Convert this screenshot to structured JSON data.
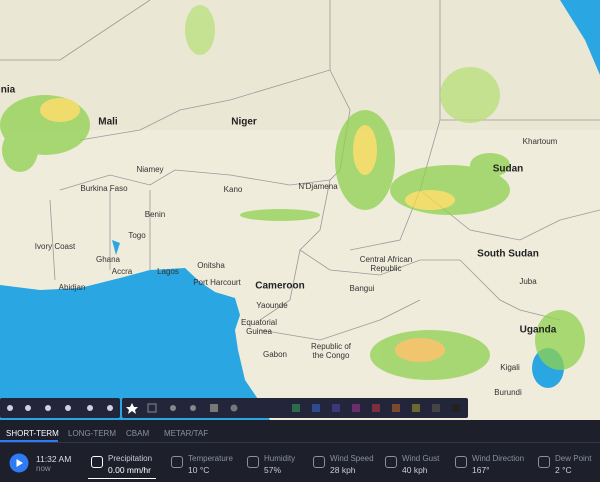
{
  "map": {
    "labels": [
      "nia",
      "Mali",
      "Niger",
      "Niamey",
      "Burkina Faso",
      "Kano",
      "N'Djamena",
      "Khartoum",
      "Sudan",
      "Benin",
      "Togo",
      "Ivory Coast",
      "Ghana",
      "Accra",
      "Lagos",
      "Abidjan",
      "Onitsha",
      "Port Harcourt",
      "Cameroon",
      "Yaounde",
      "Equatorial",
      "Guinea",
      "Central African",
      "Republic",
      "Bangui",
      "South Sudan",
      "Juba",
      "Gabon",
      "Republic of",
      "the Congo",
      "Uganda",
      "Kigali",
      "Burundi"
    ]
  },
  "tabs": [
    "SHORT-TERM",
    "LONG-TERM",
    "CBAM",
    "METAR/TAF"
  ],
  "time": {
    "clock": "11:32 AM",
    "sub": "now"
  },
  "metrics": [
    {
      "label": "Precipitation",
      "value": "0.00 mm/hr"
    },
    {
      "label": "Temperature",
      "value": "10 °C"
    },
    {
      "label": "Humidity",
      "value": "57%"
    },
    {
      "label": "Wind Speed",
      "value": "28 kph"
    },
    {
      "label": "Wind Gust",
      "value": "40 kph"
    },
    {
      "label": "Wind Direction",
      "value": "167°"
    },
    {
      "label": "Dew Point",
      "value": "2 °C"
    }
  ]
}
